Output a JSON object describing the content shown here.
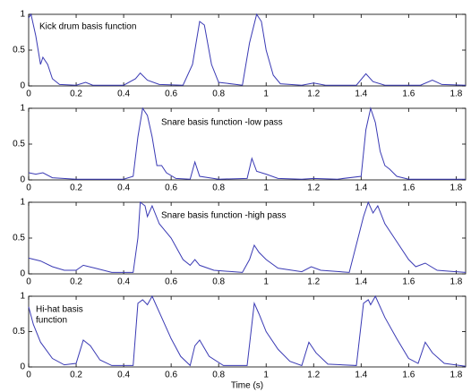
{
  "chart_data": [
    {
      "type": "line",
      "annotation": [
        "Kick drum basis function"
      ],
      "color": "#3a3ab4",
      "xlim": [
        0,
        1.84
      ],
      "ylim": [
        0,
        1
      ],
      "xticks": [
        0,
        0.2,
        0.4,
        0.6,
        0.8,
        1,
        1.2,
        1.4,
        1.6,
        1.8
      ],
      "yticks": [
        0,
        0.5,
        1
      ],
      "x": [
        0,
        0.01,
        0.03,
        0.05,
        0.06,
        0.08,
        0.1,
        0.13,
        0.2,
        0.24,
        0.27,
        0.4,
        0.45,
        0.47,
        0.5,
        0.55,
        0.65,
        0.69,
        0.72,
        0.74,
        0.77,
        0.8,
        0.9,
        0.93,
        0.96,
        0.98,
        1.0,
        1.03,
        1.06,
        1.15,
        1.2,
        1.25,
        1.38,
        1.42,
        1.45,
        1.5,
        1.65,
        1.7,
        1.74,
        1.84
      ],
      "values": [
        0.95,
        1.0,
        0.7,
        0.3,
        0.4,
        0.3,
        0.1,
        0.02,
        0.01,
        0.05,
        0.01,
        0.01,
        0.1,
        0.18,
        0.08,
        0.02,
        0.01,
        0.3,
        0.9,
        0.85,
        0.3,
        0.05,
        0.01,
        0.6,
        1.0,
        0.9,
        0.5,
        0.15,
        0.03,
        0.01,
        0.04,
        0.01,
        0.01,
        0.17,
        0.06,
        0.01,
        0.01,
        0.08,
        0.02,
        0.01
      ]
    },
    {
      "type": "line",
      "annotation": [
        "Snare basis function -low pass"
      ],
      "color": "#3a3ab4",
      "xlim": [
        0,
        1.84
      ],
      "ylim": [
        0,
        1
      ],
      "xticks": [
        0,
        0.2,
        0.4,
        0.6,
        0.8,
        1,
        1.2,
        1.4,
        1.6,
        1.8
      ],
      "yticks": [
        0,
        0.5,
        1
      ],
      "x": [
        0,
        0.03,
        0.06,
        0.1,
        0.2,
        0.4,
        0.44,
        0.46,
        0.48,
        0.5,
        0.52,
        0.54,
        0.56,
        0.58,
        0.62,
        0.68,
        0.7,
        0.72,
        0.8,
        0.92,
        0.94,
        0.96,
        1.0,
        1.05,
        1.15,
        1.2,
        1.3,
        1.4,
        1.42,
        1.44,
        1.46,
        1.48,
        1.5,
        1.52,
        1.55,
        1.6,
        1.84
      ],
      "values": [
        0.1,
        0.08,
        0.1,
        0.03,
        0.01,
        0.01,
        0.05,
        0.6,
        1.0,
        0.9,
        0.6,
        0.2,
        0.2,
        0.1,
        0.02,
        0.01,
        0.25,
        0.05,
        0.01,
        0.02,
        0.3,
        0.12,
        0.08,
        0.02,
        0.01,
        0.02,
        0.01,
        0.05,
        0.7,
        1.0,
        0.8,
        0.4,
        0.2,
        0.15,
        0.05,
        0.01,
        0.01
      ]
    },
    {
      "type": "line",
      "annotation": [
        "Snare basis function -high pass"
      ],
      "color": "#3a3ab4",
      "xlim": [
        0,
        1.84
      ],
      "ylim": [
        0,
        1
      ],
      "xticks": [
        0,
        0.2,
        0.4,
        0.6,
        0.8,
        1,
        1.2,
        1.4,
        1.6,
        1.8
      ],
      "yticks": [
        0,
        0.5,
        1
      ],
      "x": [
        0,
        0.05,
        0.1,
        0.15,
        0.2,
        0.23,
        0.28,
        0.35,
        0.44,
        0.46,
        0.47,
        0.49,
        0.5,
        0.52,
        0.55,
        0.6,
        0.65,
        0.68,
        0.7,
        0.72,
        0.78,
        0.9,
        0.93,
        0.95,
        0.97,
        1.0,
        1.05,
        1.15,
        1.19,
        1.23,
        1.35,
        1.41,
        1.43,
        1.45,
        1.47,
        1.5,
        1.55,
        1.6,
        1.63,
        1.67,
        1.72,
        1.84
      ],
      "values": [
        0.22,
        0.18,
        0.1,
        0.05,
        0.05,
        0.12,
        0.08,
        0.02,
        0.02,
        0.5,
        1.0,
        0.95,
        0.8,
        0.95,
        0.7,
        0.5,
        0.2,
        0.12,
        0.2,
        0.12,
        0.05,
        0.02,
        0.2,
        0.4,
        0.3,
        0.2,
        0.08,
        0.03,
        0.1,
        0.05,
        0.02,
        0.8,
        1.0,
        0.85,
        0.95,
        0.7,
        0.45,
        0.2,
        0.1,
        0.15,
        0.05,
        0.02
      ]
    },
    {
      "type": "line",
      "annotation": [
        "Hi-hat basis",
        "function"
      ],
      "color": "#3a3ab4",
      "xlabel": "Time (s)",
      "xlim": [
        0,
        1.84
      ],
      "ylim": [
        0,
        1
      ],
      "xticks": [
        0,
        0.2,
        0.4,
        0.6,
        0.8,
        1,
        1.2,
        1.4,
        1.6,
        1.8
      ],
      "yticks": [
        0,
        0.5,
        1
      ],
      "x": [
        0,
        0.02,
        0.05,
        0.1,
        0.15,
        0.2,
        0.23,
        0.26,
        0.3,
        0.35,
        0.44,
        0.46,
        0.48,
        0.5,
        0.52,
        0.56,
        0.6,
        0.64,
        0.68,
        0.7,
        0.72,
        0.76,
        0.82,
        0.92,
        0.95,
        0.97,
        1.0,
        1.05,
        1.1,
        1.15,
        1.18,
        1.21,
        1.26,
        1.38,
        1.41,
        1.43,
        1.44,
        1.46,
        1.5,
        1.55,
        1.6,
        1.64,
        1.67,
        1.7,
        1.75,
        1.84
      ],
      "values": [
        0.85,
        0.6,
        0.35,
        0.12,
        0.03,
        0.05,
        0.38,
        0.3,
        0.1,
        0.02,
        0.02,
        0.9,
        0.95,
        0.88,
        1.0,
        0.7,
        0.4,
        0.15,
        0.02,
        0.3,
        0.38,
        0.15,
        0.02,
        0.02,
        0.9,
        0.75,
        0.5,
        0.25,
        0.08,
        0.02,
        0.35,
        0.2,
        0.04,
        0.02,
        0.9,
        0.95,
        0.88,
        1.0,
        0.7,
        0.4,
        0.12,
        0.05,
        0.35,
        0.2,
        0.05,
        0.01
      ]
    }
  ]
}
